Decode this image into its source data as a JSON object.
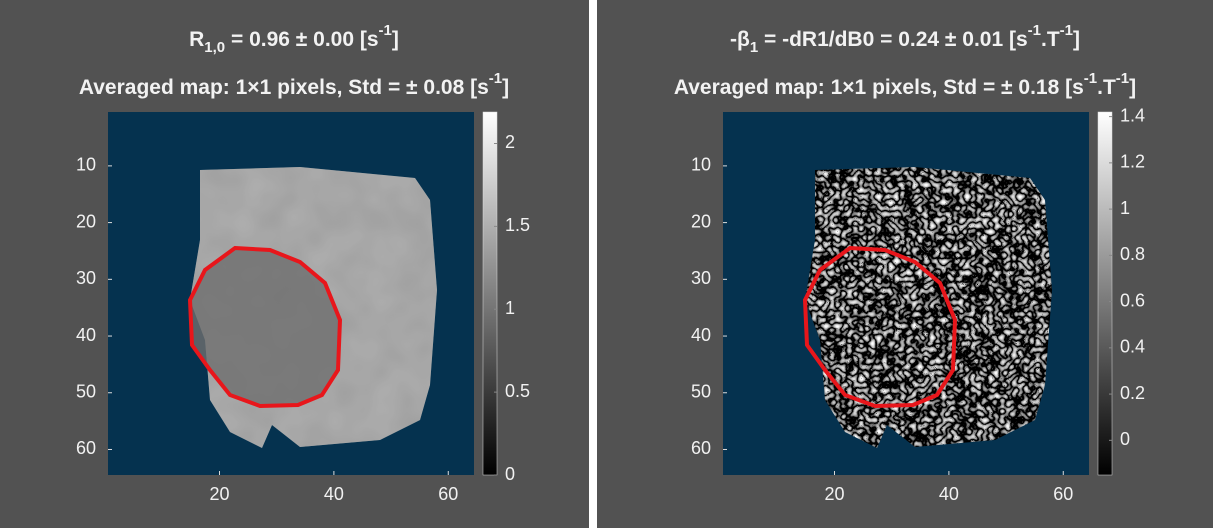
{
  "chart_data": [
    {
      "type": "image",
      "title": [
        {
          "text": "R",
          "pos": "normal"
        },
        {
          "text": "1,0",
          "pos": "sub"
        },
        {
          "text": " = 0.96 ± 0.00 [s",
          "pos": "normal"
        },
        {
          "text": "-1",
          "pos": "sup"
        },
        {
          "text": "]",
          "pos": "normal"
        }
      ],
      "subtitle": [
        {
          "text": "Averaged map: 1×1 pixels, Std = ± 0.08 [s",
          "pos": "normal"
        },
        {
          "text": "-1",
          "pos": "sup"
        },
        {
          "text": "]",
          "pos": "normal"
        }
      ],
      "xlim": [
        0.5,
        64.5
      ],
      "ylim": [
        0.5,
        64.5
      ],
      "xticks": [
        20,
        40,
        60
      ],
      "yticks": [
        10,
        20,
        30,
        40,
        50,
        60
      ],
      "colorbar": {
        "lim": [
          0,
          2.19
        ],
        "ticks": [
          0,
          0.5,
          1,
          1.5,
          2
        ]
      }
    },
    {
      "type": "image",
      "title": [
        {
          "text": "-β",
          "pos": "normal"
        },
        {
          "text": "1",
          "pos": "sub"
        },
        {
          "text": " = -dR1/dB0 = 0.24 ± 0.01 [s",
          "pos": "normal"
        },
        {
          "text": "-1",
          "pos": "sup"
        },
        {
          "text": ".T",
          "pos": "normal"
        },
        {
          "text": "-1",
          "pos": "sup"
        },
        {
          "text": "]",
          "pos": "normal"
        }
      ],
      "subtitle": [
        {
          "text": "Averaged map: 1×1 pixels, Std = ± 0.18 [s",
          "pos": "normal"
        },
        {
          "text": "-1",
          "pos": "sup"
        },
        {
          "text": ".T",
          "pos": "normal"
        },
        {
          "text": "-1",
          "pos": "sup"
        },
        {
          "text": "]",
          "pos": "normal"
        }
      ],
      "xlim": [
        0.5,
        64.5
      ],
      "ylim": [
        0.5,
        64.5
      ],
      "xticks": [
        20,
        40,
        60
      ],
      "yticks": [
        10,
        20,
        30,
        40,
        50,
        60
      ],
      "colorbar": {
        "lim": [
          -0.15,
          1.42
        ],
        "ticks": [
          0,
          0.2,
          0.4,
          0.6,
          0.8,
          1,
          1.2,
          1.4
        ]
      }
    }
  ]
}
